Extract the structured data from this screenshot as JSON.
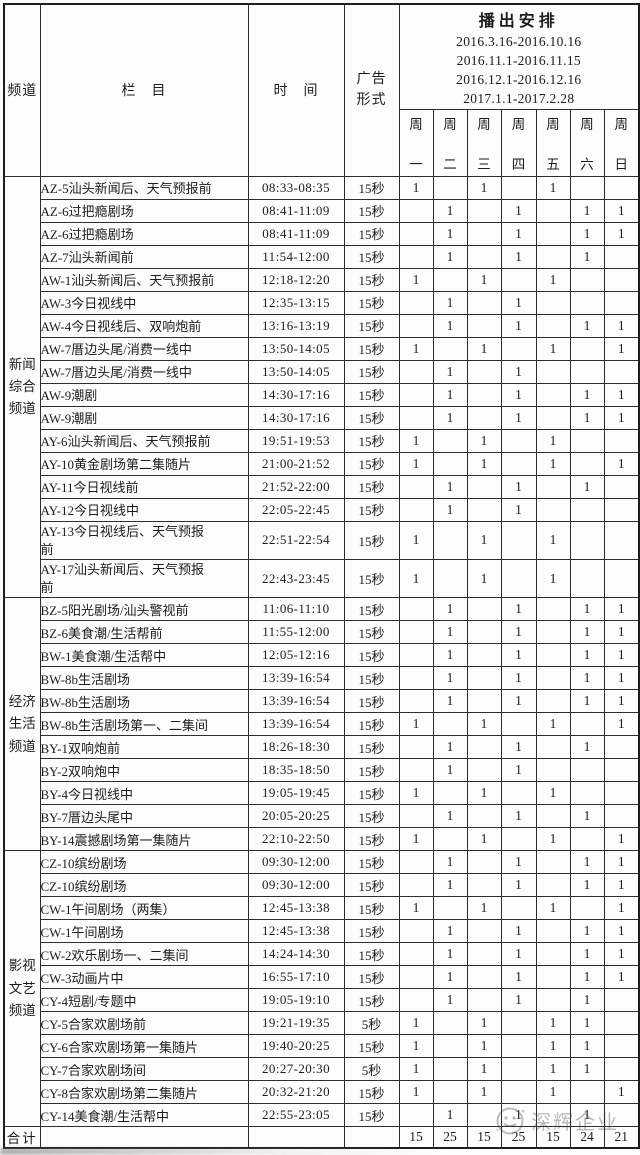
{
  "table": {
    "columns": {
      "channel": "频道",
      "program": "栏　目",
      "time": "时　间",
      "ad_format": "广告\n形式"
    },
    "schedule_title": "播出安排",
    "date_ranges": [
      "2016.3.16-2016.10.16",
      "2016.11.1-2016.11.15",
      "2016.12.1-2016.12.16",
      "2017.1.1-2017.2.28"
    ],
    "weekdays": [
      "周一",
      "周二",
      "周三",
      "周四",
      "周五",
      "周六",
      "周日"
    ],
    "channel_groups": [
      {
        "name": "新闻综合频道",
        "display": "新闻\n综合\n频道",
        "row_count": 17
      },
      {
        "name": "经济生活频道",
        "display": "经济\n生活\n频道",
        "row_count": 11
      },
      {
        "name": "影视文艺频道",
        "display": "影视\n文艺\n频道",
        "row_count": 12
      }
    ],
    "rows": [
      {
        "program": "AZ-5汕头新闻后、天气预报前",
        "time": "08:33-08:35",
        "format": "15秒",
        "days": [
          "1",
          "",
          "1",
          "",
          "1",
          "",
          ""
        ]
      },
      {
        "program": "AZ-6过把瘾剧场",
        "time": "08:41-11:09",
        "format": "15秒",
        "days": [
          "",
          "1",
          "",
          "1",
          "",
          "1",
          "1"
        ]
      },
      {
        "program": "AZ-6过把瘾剧场",
        "time": "08:41-11:09",
        "format": "15秒",
        "days": [
          "",
          "1",
          "",
          "1",
          "",
          "1",
          "1"
        ]
      },
      {
        "program": "AZ-7汕头新闻前",
        "time": "11:54-12:00",
        "format": "15秒",
        "days": [
          "",
          "1",
          "",
          "1",
          "",
          "1",
          ""
        ]
      },
      {
        "program": "AW-1汕头新闻后、天气预报前",
        "time": "12:18-12:20",
        "format": "15秒",
        "days": [
          "1",
          "",
          "1",
          "",
          "1",
          "",
          ""
        ]
      },
      {
        "program": "AW-3今日视线中",
        "time": "12:35-13:15",
        "format": "15秒",
        "days": [
          "",
          "1",
          "",
          "1",
          "",
          "",
          ""
        ]
      },
      {
        "program": "AW-4今日视线后、双响炮前",
        "time": "13:16-13:19",
        "format": "15秒",
        "days": [
          "",
          "1",
          "",
          "1",
          "",
          "1",
          "1"
        ]
      },
      {
        "program": "AW-7厝边头尾/消费一线中",
        "time": "13:50-14:05",
        "format": "15秒",
        "days": [
          "1",
          "",
          "1",
          "",
          "1",
          "",
          "1"
        ]
      },
      {
        "program": "AW-7厝边头尾/消费一线中",
        "time": "13:50-14:05",
        "format": "15秒",
        "days": [
          "",
          "1",
          "",
          "1",
          "",
          "",
          ""
        ]
      },
      {
        "program": "AW-9潮剧",
        "time": "14:30-17:16",
        "format": "15秒",
        "days": [
          "",
          "1",
          "",
          "1",
          "",
          "1",
          "1"
        ]
      },
      {
        "program": "AW-9潮剧",
        "time": "14:30-17:16",
        "format": "15秒",
        "days": [
          "",
          "1",
          "",
          "1",
          "",
          "1",
          "1"
        ]
      },
      {
        "program": "AY-6汕头新闻后、天气预报前",
        "time": "19:51-19:53",
        "format": "15秒",
        "days": [
          "1",
          "",
          "1",
          "",
          "1",
          "",
          ""
        ]
      },
      {
        "program": "AY-10黄金剧场第二集随片",
        "time": "21:00-21:52",
        "format": "15秒",
        "days": [
          "1",
          "",
          "1",
          "",
          "1",
          "",
          "1"
        ]
      },
      {
        "program": "AY-11今日视线前",
        "time": "21:52-22:00",
        "format": "15秒",
        "days": [
          "",
          "1",
          "",
          "1",
          "",
          "1",
          ""
        ]
      },
      {
        "program": "AY-12今日视线中",
        "time": "22:05-22:45",
        "format": "15秒",
        "days": [
          "",
          "1",
          "",
          "1",
          "",
          "",
          ""
        ]
      },
      {
        "program": "AY-13今日视线后、天气预报\n前",
        "time": "22:51-22:54",
        "format": "15秒",
        "days": [
          "1",
          "",
          "1",
          "",
          "1",
          "",
          ""
        ]
      },
      {
        "program": "AY-17汕头新闻后、天气预报\n前",
        "time": "22:43-23:45",
        "format": "15秒",
        "days": [
          "1",
          "",
          "1",
          "",
          "1",
          "",
          ""
        ]
      },
      {
        "program": "BZ-5阳光剧场/汕头警视前",
        "time": "11:06-11:10",
        "format": "15秒",
        "days": [
          "",
          "1",
          "",
          "1",
          "",
          "1",
          "1"
        ]
      },
      {
        "program": "BZ-6美食潮/生活帮前",
        "time": "11:55-12:00",
        "format": "15秒",
        "days": [
          "",
          "1",
          "",
          "1",
          "",
          "1",
          "1"
        ]
      },
      {
        "program": "BW-1美食潮/生活帮中",
        "time": "12:05-12:16",
        "format": "15秒",
        "days": [
          "",
          "1",
          "",
          "1",
          "",
          "1",
          "1"
        ]
      },
      {
        "program": "BW-8b生活剧场",
        "time": "13:39-16:54",
        "format": "15秒",
        "days": [
          "",
          "1",
          "",
          "1",
          "",
          "1",
          "1"
        ]
      },
      {
        "program": "BW-8b生活剧场",
        "time": "13:39-16:54",
        "format": "15秒",
        "days": [
          "",
          "1",
          "",
          "1",
          "",
          "1",
          "1"
        ]
      },
      {
        "program": "BW-8b生活剧场第一、二集间",
        "time": "13:39-16:54",
        "format": "15秒",
        "days": [
          "1",
          "",
          "1",
          "",
          "1",
          "",
          "1"
        ]
      },
      {
        "program": "BY-1双响炮前",
        "time": "18:26-18:30",
        "format": "15秒",
        "days": [
          "",
          "1",
          "",
          "1",
          "",
          "1",
          ""
        ]
      },
      {
        "program": "BY-2双响炮中",
        "time": "18:35-18:50",
        "format": "15秒",
        "days": [
          "",
          "1",
          "",
          "1",
          "",
          "",
          ""
        ]
      },
      {
        "program": "BY-4今日视线中",
        "time": "19:05-19:45",
        "format": "15秒",
        "days": [
          "1",
          "",
          "1",
          "",
          "1",
          "",
          ""
        ]
      },
      {
        "program": "BY-7厝边头尾中",
        "time": "20:05-20:25",
        "format": "15秒",
        "days": [
          "",
          "1",
          "",
          "1",
          "",
          "1",
          ""
        ]
      },
      {
        "program": "BY-14震撼剧场第一集随片",
        "time": "22:10-22:50",
        "format": "15秒",
        "days": [
          "1",
          "",
          "1",
          "",
          "1",
          "",
          "1"
        ]
      },
      {
        "program": "CZ-10缤纷剧场",
        "time": "09:30-12:00",
        "format": "15秒",
        "days": [
          "",
          "1",
          "",
          "1",
          "",
          "1",
          "1"
        ]
      },
      {
        "program": "CZ-10缤纷剧场",
        "time": "09:30-12:00",
        "format": "15秒",
        "days": [
          "",
          "1",
          "",
          "1",
          "",
          "1",
          "1"
        ]
      },
      {
        "program": "CW-1午间剧场（两集）",
        "time": "12:45-13:38",
        "format": "15秒",
        "days": [
          "1",
          "",
          "1",
          "",
          "1",
          "",
          "1"
        ]
      },
      {
        "program": "CW-1午间剧场",
        "time": "12:45-13:38",
        "format": "15秒",
        "days": [
          "",
          "1",
          "",
          "1",
          "",
          "1",
          "1"
        ]
      },
      {
        "program": "CW-2欢乐剧场一、二集间",
        "time": "14:24-14:30",
        "format": "15秒",
        "days": [
          "",
          "1",
          "",
          "1",
          "",
          "1",
          "1"
        ]
      },
      {
        "program": "CW-3动画片中",
        "time": "16:55-17:10",
        "format": "15秒",
        "days": [
          "",
          "1",
          "",
          "1",
          "",
          "1",
          "1"
        ]
      },
      {
        "program": "CY-4短剧/专题中",
        "time": "19:05-19:10",
        "format": "15秒",
        "days": [
          "",
          "1",
          "",
          "1",
          "",
          "1",
          ""
        ]
      },
      {
        "program": "CY-5合家欢剧场前",
        "time": "19:21-19:35",
        "format": "5秒",
        "days": [
          "1",
          "",
          "1",
          "",
          "1",
          "1",
          ""
        ]
      },
      {
        "program": "CY-6合家欢剧场第一集随片",
        "time": "19:40-20:25",
        "format": "15秒",
        "days": [
          "1",
          "",
          "1",
          "",
          "1",
          "1",
          ""
        ]
      },
      {
        "program": "CY-7合家欢剧场间",
        "time": "20:27-20:30",
        "format": "5秒",
        "days": [
          "1",
          "",
          "1",
          "",
          "1",
          "1",
          ""
        ]
      },
      {
        "program": "CY-8合家欢剧场第二集随片",
        "time": "20:32-21:20",
        "format": "15秒",
        "days": [
          "1",
          "",
          "1",
          "",
          "1",
          "",
          "1"
        ]
      },
      {
        "program": "CY-14美食潮/生活帮中",
        "time": "22:55-23:05",
        "format": "15秒",
        "days": [
          "",
          "1",
          "",
          "1",
          "",
          "1",
          ""
        ]
      }
    ],
    "total_row": {
      "label": "合计",
      "values": [
        "15",
        "25",
        "15",
        "25",
        "15",
        "24",
        "21"
      ]
    }
  },
  "watermark": {
    "company": "深辉企业"
  },
  "colors": {
    "text": "#1c1c1c",
    "border": "#2e2e2e",
    "background": "#fdfdfd",
    "watermark_gray": "#b2b2b2"
  }
}
